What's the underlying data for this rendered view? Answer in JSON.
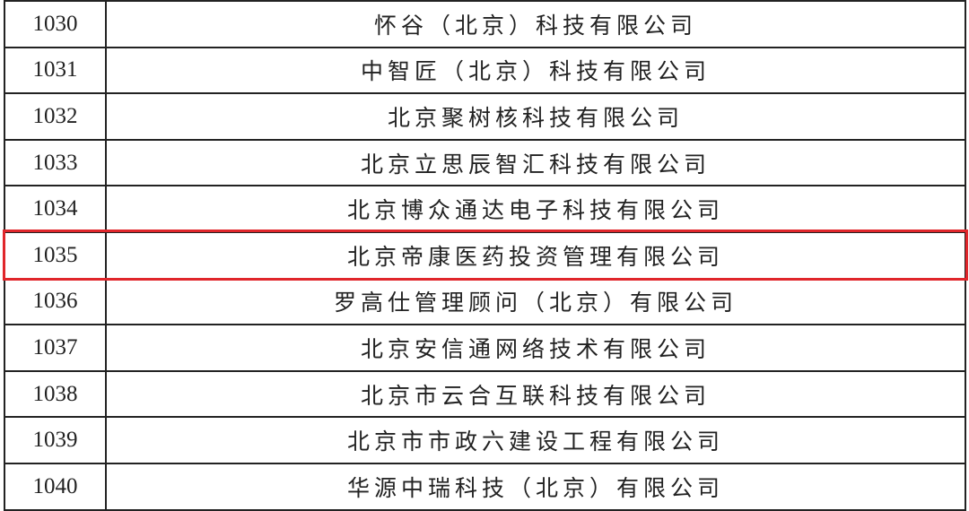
{
  "rows": [
    {
      "no": "1030",
      "company": "怀谷（北京）科技有限公司"
    },
    {
      "no": "1031",
      "company": "中智匠（北京）科技有限公司"
    },
    {
      "no": "1032",
      "company": "北京聚树核科技有限公司"
    },
    {
      "no": "1033",
      "company": "北京立思辰智汇科技有限公司"
    },
    {
      "no": "1034",
      "company": "北京博众通达电子科技有限公司"
    },
    {
      "no": "1035",
      "company": "北京帝康医药投资管理有限公司"
    },
    {
      "no": "1036",
      "company": "罗高仕管理顾问（北京）有限公司"
    },
    {
      "no": "1037",
      "company": "北京安信通网络技术有限公司"
    },
    {
      "no": "1038",
      "company": "北京市云合互联科技有限公司"
    },
    {
      "no": "1039",
      "company": "北京市市政六建设工程有限公司"
    },
    {
      "no": "1040",
      "company": "华源中瑞科技（北京）有限公司"
    }
  ],
  "highlight": {
    "row_no": "1035",
    "color": "#e0262b"
  }
}
